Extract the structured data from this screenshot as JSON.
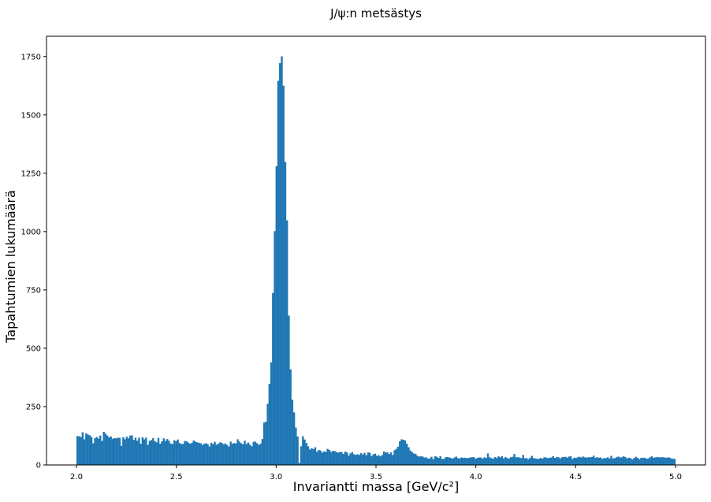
{
  "chart_data": {
    "type": "bar",
    "title": "J/ψ:n metsästys",
    "xlabel": "Invariantti massa [GeV/c²]",
    "ylabel": "Tapahtumien lukumäärä",
    "xlim": [
      1.85,
      5.15
    ],
    "ylim": [
      0,
      1837
    ],
    "x_ticks": [
      2.0,
      2.5,
      3.0,
      3.5,
      4.0,
      4.5,
      5.0
    ],
    "y_ticks": [
      0,
      250,
      500,
      750,
      1000,
      1250,
      1500,
      1750
    ],
    "bin_range": [
      2.0,
      5.0
    ],
    "bar_color": "#1f77b4",
    "grid": false,
    "legend": "none",
    "series": [
      {
        "values": [
          124,
          123,
          120,
          140,
          110,
          136,
          130,
          127,
          120,
          93,
          115,
          120,
          113,
          126,
          103,
          142,
          134,
          126,
          118,
          122,
          112,
          115,
          114,
          117,
          116,
          82,
          119,
          110,
          121,
          114,
          126,
          127,
          107,
          117,
          104,
          117,
          91,
          119,
          110,
          117,
          86,
          103,
          107,
          115,
          102,
          97,
          116,
          91,
          101,
          114,
          103,
          111,
          104,
          92,
          90,
          106,
          102,
          109,
          94,
          90,
          90,
          103,
          101,
          96,
          91,
          95,
          105,
          100,
          97,
          95,
          93,
          86,
          91,
          93,
          89,
          79,
          95,
          90,
          99,
          87,
          91,
          97,
          95,
          89,
          92,
          86,
          79,
          100,
          91,
          94,
          92,
          110,
          100,
          93,
          89,
          104,
          90,
          96,
          87,
          80,
          99,
          100,
          93,
          86,
          91,
          111,
          182,
          185,
          262,
          348,
          440,
          737,
          1002,
          1280,
          1646,
          1722,
          1751,
          1625,
          1298,
          1048,
          640,
          410,
          280,
          225,
          160,
          122,
          9,
          80,
          123,
          109,
          94,
          80,
          66,
          72,
          68,
          76,
          57,
          64,
          62,
          53,
          58,
          56,
          69,
          64,
          56,
          60,
          60,
          56,
          53,
          56,
          55,
          47,
          57,
          54,
          41,
          50,
          55,
          46,
          43,
          46,
          43,
          51,
          45,
          52,
          42,
          54,
          52,
          38,
          46,
          48,
          39,
          42,
          37,
          43,
          58,
          53,
          54,
          47,
          54,
          43,
          63,
          69,
          78,
          101,
          110,
          108,
          105,
          91,
          76,
          62,
          55,
          49,
          47,
          39,
          36,
          37,
          36,
          31,
          33,
          27,
          28,
          35,
          25,
          37,
          35,
          30,
          38,
          26,
          26,
          33,
          34,
          32,
          30,
          27,
          32,
          36,
          29,
          28,
          32,
          30,
          31,
          29,
          30,
          32,
          33,
          34,
          27,
          30,
          32,
          32,
          27,
          33,
          30,
          49,
          33,
          29,
          27,
          34,
          30,
          37,
          33,
          38,
          28,
          34,
          29,
          28,
          33,
          35,
          47,
          33,
          33,
          32,
          29,
          43,
          29,
          29,
          25,
          31,
          39,
          29,
          28,
          26,
          27,
          30,
          27,
          33,
          32,
          29,
          31,
          32,
          38,
          30,
          33,
          34,
          28,
          33,
          34,
          35,
          31,
          36,
          37,
          26,
          31,
          30,
          33,
          35,
          32,
          36,
          33,
          31,
          33,
          33,
          34,
          40,
          31,
          33,
          31,
          32,
          26,
          30,
          29,
          33,
          28,
          39,
          28,
          29,
          33,
          36,
          32,
          33,
          37,
          34,
          28,
          31,
          29,
          24,
          30,
          35,
          30,
          25,
          31,
          30,
          31,
          27,
          28,
          33,
          37,
          31,
          32,
          34,
          33,
          32,
          34,
          32,
          31,
          32,
          32,
          28,
          27,
          26
        ]
      }
    ]
  }
}
